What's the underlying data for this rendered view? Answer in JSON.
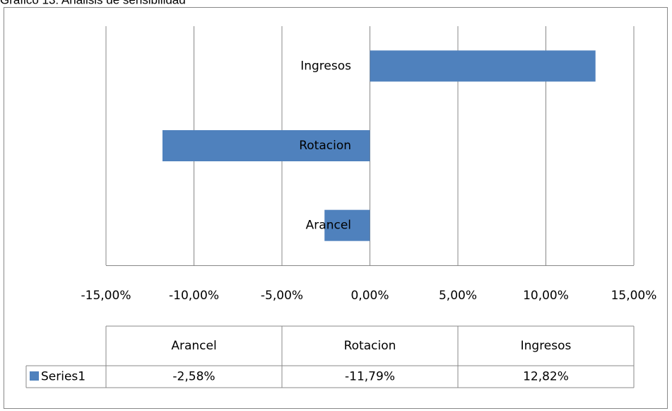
{
  "chart_data": {
    "type": "bar",
    "orientation": "horizontal",
    "title": "Gráfico 13: Análisis de sensibilidad",
    "categories": [
      "Arancel",
      "Rotacion",
      "Ingresos"
    ],
    "series": [
      {
        "name": "Series1",
        "color": "#4f81bd",
        "values": [
          -2.58,
          -11.79,
          12.82
        ],
        "value_labels": [
          "-2,58%",
          "-11,79%",
          "12,82%"
        ]
      }
    ],
    "xlim": [
      -15,
      15
    ],
    "xticks": [
      {
        "value": -15,
        "label": "-15,00%"
      },
      {
        "value": -10,
        "label": "-10,00%"
      },
      {
        "value": -5,
        "label": "-5,00%"
      },
      {
        "value": 0,
        "label": "0,00%"
      },
      {
        "value": 5,
        "label": "5,00%"
      },
      {
        "value": 10,
        "label": "10,00%"
      },
      {
        "value": 15,
        "label": "15,00%"
      }
    ],
    "grid": true,
    "data_table": true
  }
}
